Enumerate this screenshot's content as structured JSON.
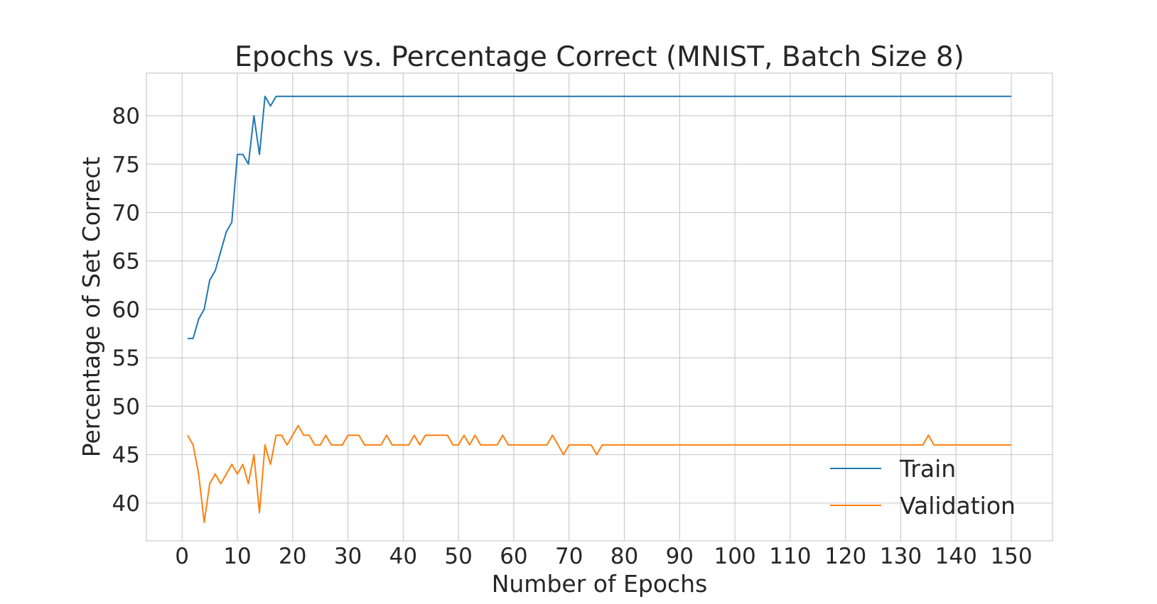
{
  "chart_data": {
    "type": "line",
    "title": "Epochs vs. Percentage Correct (MNIST, Batch Size 8)",
    "xlabel": "Number of Epochs",
    "ylabel": "Percentage of Set Correct",
    "xlim": [
      -6.45,
      157.45
    ],
    "ylim": [
      36.1,
      84.4
    ],
    "xticks": [
      0,
      10,
      20,
      30,
      40,
      50,
      60,
      70,
      80,
      90,
      100,
      110,
      120,
      130,
      140,
      150
    ],
    "yticks": [
      40,
      45,
      50,
      55,
      60,
      65,
      70,
      75,
      80
    ],
    "grid": true,
    "legend_position": "lower-right",
    "series": [
      {
        "name": "Train",
        "color": "#1f77b4",
        "x": [
          1,
          2,
          3,
          4,
          5,
          6,
          7,
          8,
          9,
          10,
          11,
          12,
          13,
          14,
          15,
          16,
          17,
          150
        ],
        "y": [
          57,
          57,
          59,
          60,
          63,
          64,
          66,
          68,
          69,
          76,
          76,
          75,
          80,
          76,
          82,
          81,
          82,
          82
        ]
      },
      {
        "name": "Validation",
        "color": "#ff7f0e",
        "x": [
          1,
          2,
          3,
          4,
          5,
          6,
          7,
          8,
          9,
          10,
          11,
          12,
          13,
          14,
          15,
          16,
          17,
          18,
          19,
          20,
          21,
          22,
          23,
          24,
          25,
          26,
          27,
          28,
          29,
          30,
          31,
          32,
          33,
          34,
          35,
          36,
          37,
          38,
          39,
          40,
          41,
          42,
          43,
          44,
          45,
          46,
          47,
          48,
          49,
          50,
          51,
          52,
          53,
          54,
          55,
          56,
          57,
          58,
          59,
          60,
          61,
          62,
          63,
          64,
          65,
          66,
          67,
          68,
          69,
          70,
          71,
          72,
          73,
          74,
          75,
          76,
          77,
          134,
          135,
          136,
          150
        ],
        "y": [
          47,
          46,
          43,
          38,
          42,
          43,
          42,
          43,
          44,
          43,
          44,
          42,
          45,
          39,
          46,
          44,
          47,
          47,
          46,
          47,
          48,
          47,
          47,
          46,
          46,
          47,
          46,
          46,
          46,
          47,
          47,
          47,
          46,
          46,
          46,
          46,
          47,
          46,
          46,
          46,
          46,
          47,
          46,
          47,
          47,
          47,
          47,
          47,
          46,
          46,
          47,
          46,
          47,
          46,
          46,
          46,
          46,
          47,
          46,
          46,
          46,
          46,
          46,
          46,
          46,
          46,
          47,
          46,
          45,
          46,
          46,
          46,
          46,
          46,
          45,
          46,
          46,
          46,
          47,
          46,
          46
        ]
      }
    ]
  }
}
